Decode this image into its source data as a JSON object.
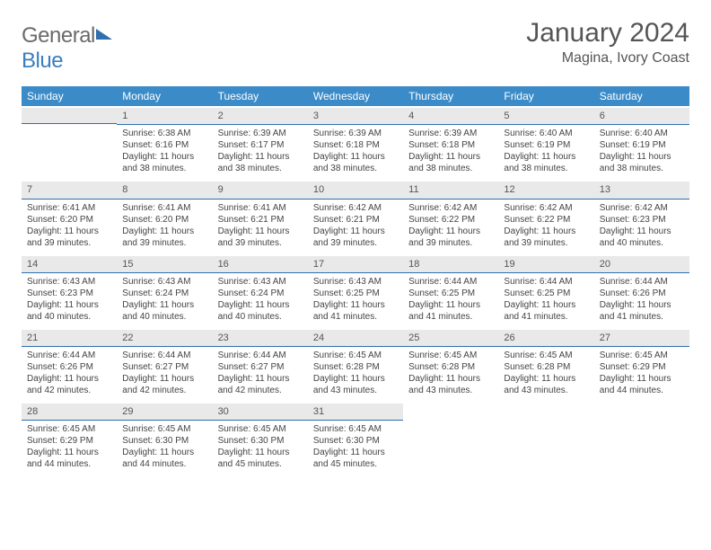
{
  "logo": {
    "text1": "General",
    "text2": "Blue"
  },
  "title": "January 2024",
  "location": "Magina, Ivory Coast",
  "colors": {
    "header_bg": "#3b8bc8",
    "band_bg": "#e9e9e9",
    "band_border": "#2f6fae",
    "text": "#444444",
    "logo_gray": "#6a6a6a",
    "logo_blue": "#3b7fbf"
  },
  "weekdays": [
    "Sunday",
    "Monday",
    "Tuesday",
    "Wednesday",
    "Thursday",
    "Friday",
    "Saturday"
  ],
  "weeks": [
    [
      null,
      {
        "n": "1",
        "sr": "6:38 AM",
        "ss": "6:16 PM",
        "dl": "11 hours and 38 minutes."
      },
      {
        "n": "2",
        "sr": "6:39 AM",
        "ss": "6:17 PM",
        "dl": "11 hours and 38 minutes."
      },
      {
        "n": "3",
        "sr": "6:39 AM",
        "ss": "6:18 PM",
        "dl": "11 hours and 38 minutes."
      },
      {
        "n": "4",
        "sr": "6:39 AM",
        "ss": "6:18 PM",
        "dl": "11 hours and 38 minutes."
      },
      {
        "n": "5",
        "sr": "6:40 AM",
        "ss": "6:19 PM",
        "dl": "11 hours and 38 minutes."
      },
      {
        "n": "6",
        "sr": "6:40 AM",
        "ss": "6:19 PM",
        "dl": "11 hours and 38 minutes."
      }
    ],
    [
      {
        "n": "7",
        "sr": "6:41 AM",
        "ss": "6:20 PM",
        "dl": "11 hours and 39 minutes."
      },
      {
        "n": "8",
        "sr": "6:41 AM",
        "ss": "6:20 PM",
        "dl": "11 hours and 39 minutes."
      },
      {
        "n": "9",
        "sr": "6:41 AM",
        "ss": "6:21 PM",
        "dl": "11 hours and 39 minutes."
      },
      {
        "n": "10",
        "sr": "6:42 AM",
        "ss": "6:21 PM",
        "dl": "11 hours and 39 minutes."
      },
      {
        "n": "11",
        "sr": "6:42 AM",
        "ss": "6:22 PM",
        "dl": "11 hours and 39 minutes."
      },
      {
        "n": "12",
        "sr": "6:42 AM",
        "ss": "6:22 PM",
        "dl": "11 hours and 39 minutes."
      },
      {
        "n": "13",
        "sr": "6:42 AM",
        "ss": "6:23 PM",
        "dl": "11 hours and 40 minutes."
      }
    ],
    [
      {
        "n": "14",
        "sr": "6:43 AM",
        "ss": "6:23 PM",
        "dl": "11 hours and 40 minutes."
      },
      {
        "n": "15",
        "sr": "6:43 AM",
        "ss": "6:24 PM",
        "dl": "11 hours and 40 minutes."
      },
      {
        "n": "16",
        "sr": "6:43 AM",
        "ss": "6:24 PM",
        "dl": "11 hours and 40 minutes."
      },
      {
        "n": "17",
        "sr": "6:43 AM",
        "ss": "6:25 PM",
        "dl": "11 hours and 41 minutes."
      },
      {
        "n": "18",
        "sr": "6:44 AM",
        "ss": "6:25 PM",
        "dl": "11 hours and 41 minutes."
      },
      {
        "n": "19",
        "sr": "6:44 AM",
        "ss": "6:25 PM",
        "dl": "11 hours and 41 minutes."
      },
      {
        "n": "20",
        "sr": "6:44 AM",
        "ss": "6:26 PM",
        "dl": "11 hours and 41 minutes."
      }
    ],
    [
      {
        "n": "21",
        "sr": "6:44 AM",
        "ss": "6:26 PM",
        "dl": "11 hours and 42 minutes."
      },
      {
        "n": "22",
        "sr": "6:44 AM",
        "ss": "6:27 PM",
        "dl": "11 hours and 42 minutes."
      },
      {
        "n": "23",
        "sr": "6:44 AM",
        "ss": "6:27 PM",
        "dl": "11 hours and 42 minutes."
      },
      {
        "n": "24",
        "sr": "6:45 AM",
        "ss": "6:28 PM",
        "dl": "11 hours and 43 minutes."
      },
      {
        "n": "25",
        "sr": "6:45 AM",
        "ss": "6:28 PM",
        "dl": "11 hours and 43 minutes."
      },
      {
        "n": "26",
        "sr": "6:45 AM",
        "ss": "6:28 PM",
        "dl": "11 hours and 43 minutes."
      },
      {
        "n": "27",
        "sr": "6:45 AM",
        "ss": "6:29 PM",
        "dl": "11 hours and 44 minutes."
      }
    ],
    [
      {
        "n": "28",
        "sr": "6:45 AM",
        "ss": "6:29 PM",
        "dl": "11 hours and 44 minutes."
      },
      {
        "n": "29",
        "sr": "6:45 AM",
        "ss": "6:30 PM",
        "dl": "11 hours and 44 minutes."
      },
      {
        "n": "30",
        "sr": "6:45 AM",
        "ss": "6:30 PM",
        "dl": "11 hours and 45 minutes."
      },
      {
        "n": "31",
        "sr": "6:45 AM",
        "ss": "6:30 PM",
        "dl": "11 hours and 45 minutes."
      },
      null,
      null,
      null
    ]
  ],
  "labels": {
    "sunrise": "Sunrise:",
    "sunset": "Sunset:",
    "daylight": "Daylight:"
  }
}
